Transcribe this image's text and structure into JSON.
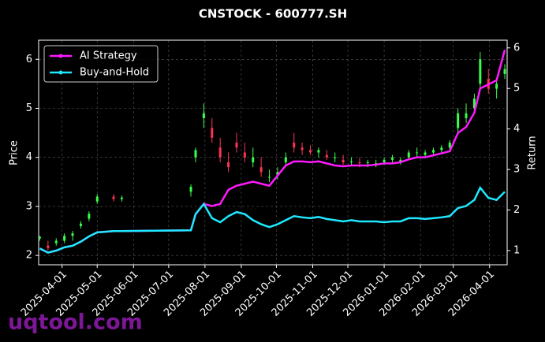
{
  "chart_data": {
    "type": "candlestick",
    "title": "CNSTOCK - 600777.SH",
    "ylabel": "Price",
    "y2label": "Return",
    "watermark": "uqtool.com",
    "xlim": [
      "2025-03-12",
      "2026-04-16"
    ],
    "xticks": [
      "2025-04-01",
      "2025-05-01",
      "2025-06-01",
      "2025-07-01",
      "2025-08-01",
      "2025-09-01",
      "2025-10-01",
      "2025-11-01",
      "2025-12-01",
      "2026-01-01",
      "2026-02-01",
      "2026-03-01",
      "2026-04-01"
    ],
    "ylim": [
      1.81,
      6.39
    ],
    "yticks": [
      2,
      3,
      4,
      5,
      6
    ],
    "y2lim": [
      0.65,
      6.19
    ],
    "y2ticks": [
      1,
      2,
      3,
      4,
      5,
      6
    ],
    "grid": true,
    "legend": "upper left",
    "up_color": "#39ff4a",
    "down_color": "#ff3355",
    "x": [
      "2025-03-13",
      "2025-03-20",
      "2025-03-27",
      "2025-04-03",
      "2025-04-10",
      "2025-04-17",
      "2025-04-24",
      "2025-05-01",
      "2025-05-15",
      "2025-05-22",
      "2025-07-20",
      "2025-07-24",
      "2025-07-31",
      "2025-08-07",
      "2025-08-14",
      "2025-08-21",
      "2025-08-28",
      "2025-09-04",
      "2025-09-11",
      "2025-09-18",
      "2025-09-25",
      "2025-10-02",
      "2025-10-09",
      "2025-10-16",
      "2025-10-23",
      "2025-10-30",
      "2025-11-06",
      "2025-11-13",
      "2025-11-20",
      "2025-11-27",
      "2025-12-04",
      "2025-12-11",
      "2025-12-18",
      "2025-12-25",
      "2026-01-01",
      "2026-01-08",
      "2026-01-15",
      "2026-01-22",
      "2026-01-29",
      "2026-02-05",
      "2026-02-12",
      "2026-02-19",
      "2026-02-26",
      "2026-03-05",
      "2026-03-12",
      "2026-03-19",
      "2026-03-24",
      "2026-03-31",
      "2026-04-07",
      "2026-04-14"
    ],
    "open": [
      2.35,
      2.2,
      2.25,
      2.3,
      2.4,
      2.6,
      2.75,
      3.1,
      3.2,
      3.15,
      3.3,
      4.0,
      4.8,
      4.6,
      4.2,
      3.9,
      4.3,
      4.1,
      3.9,
      3.8,
      3.6,
      3.65,
      3.9,
      4.3,
      4.2,
      4.15,
      4.1,
      4.05,
      4.0,
      3.95,
      3.9,
      3.9,
      3.88,
      3.85,
      3.9,
      3.95,
      3.9,
      4.0,
      4.1,
      4.05,
      4.1,
      4.15,
      4.2,
      4.6,
      4.8,
      5.0,
      5.5,
      5.6,
      5.4,
      5.7
    ],
    "high": [
      2.4,
      2.3,
      2.35,
      2.45,
      2.5,
      2.7,
      2.9,
      3.25,
      3.25,
      3.22,
      3.45,
      4.2,
      5.1,
      4.8,
      4.4,
      4.1,
      4.5,
      4.3,
      4.2,
      4.0,
      3.75,
      3.8,
      4.1,
      4.5,
      4.3,
      4.25,
      4.2,
      4.15,
      4.1,
      4.05,
      4.0,
      4.0,
      3.95,
      3.95,
      4.0,
      4.05,
      4.0,
      4.15,
      4.2,
      4.15,
      4.2,
      4.25,
      4.35,
      5.0,
      5.1,
      5.3,
      6.15,
      5.8,
      5.6,
      5.9
    ],
    "low": [
      2.3,
      2.1,
      2.2,
      2.25,
      2.3,
      2.55,
      2.7,
      3.05,
      3.1,
      3.1,
      3.2,
      3.9,
      4.6,
      4.3,
      3.9,
      3.7,
      4.1,
      3.9,
      3.8,
      3.6,
      3.5,
      3.55,
      3.8,
      4.1,
      4.05,
      4.05,
      4.0,
      3.95,
      3.9,
      3.85,
      3.85,
      3.8,
      3.8,
      3.8,
      3.85,
      3.9,
      3.85,
      3.95,
      4.0,
      4.0,
      4.05,
      4.1,
      4.15,
      4.5,
      4.7,
      4.9,
      5.4,
      5.3,
      5.2,
      5.6
    ],
    "close": [
      2.38,
      2.15,
      2.3,
      2.4,
      2.45,
      2.65,
      2.85,
      3.2,
      3.15,
      3.18,
      3.4,
      4.15,
      4.9,
      4.4,
      4.0,
      3.8,
      4.2,
      4.0,
      4.0,
      3.7,
      3.6,
      3.7,
      4.0,
      4.2,
      4.15,
      4.1,
      4.15,
      4.0,
      4.0,
      3.9,
      3.92,
      3.88,
      3.9,
      3.88,
      3.95,
      4.0,
      3.95,
      4.1,
      4.1,
      4.1,
      4.15,
      4.2,
      4.3,
      4.9,
      4.9,
      5.2,
      6.0,
      5.4,
      5.5,
      5.8
    ],
    "series": [
      {
        "name": "AI Strategy",
        "color": "#ff1aff",
        "axis": "y2",
        "values": [
          1.05,
          0.95,
          1.0,
          1.08,
          1.12,
          1.22,
          1.35,
          1.45,
          1.48,
          1.48,
          1.5,
          1.9,
          2.15,
          2.1,
          2.15,
          2.5,
          2.6,
          2.65,
          2.7,
          2.65,
          2.6,
          2.85,
          3.1,
          3.2,
          3.2,
          3.18,
          3.2,
          3.15,
          3.1,
          3.08,
          3.1,
          3.1,
          3.1,
          3.12,
          3.15,
          3.15,
          3.18,
          3.25,
          3.3,
          3.3,
          3.35,
          3.4,
          3.45,
          3.9,
          4.05,
          4.4,
          5.0,
          5.1,
          5.2,
          5.95
        ]
      },
      {
        "name": "Buy-and-Hold",
        "color": "#1ee8ff",
        "axis": "y2",
        "values": [
          1.05,
          0.95,
          1.0,
          1.08,
          1.12,
          1.22,
          1.35,
          1.45,
          1.48,
          1.48,
          1.5,
          1.9,
          2.15,
          1.8,
          1.7,
          1.85,
          1.95,
          1.9,
          1.75,
          1.65,
          1.58,
          1.65,
          1.75,
          1.85,
          1.82,
          1.8,
          1.83,
          1.78,
          1.75,
          1.72,
          1.75,
          1.72,
          1.72,
          1.72,
          1.7,
          1.72,
          1.72,
          1.8,
          1.8,
          1.78,
          1.8,
          1.82,
          1.85,
          2.05,
          2.1,
          2.25,
          2.55,
          2.3,
          2.25,
          2.45
        ]
      }
    ]
  }
}
